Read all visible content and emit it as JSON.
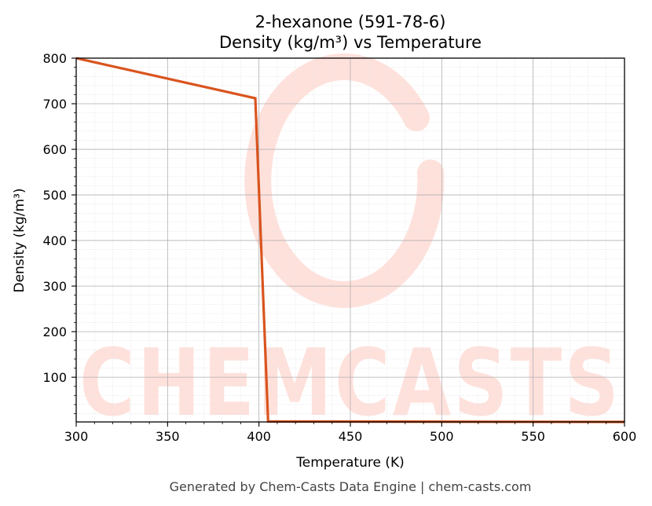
{
  "chart_data": {
    "type": "line",
    "title": "2-hexanone (591-78-6)",
    "subtitle": "Density (kg/m³) vs Temperature",
    "xlabel": "Temperature (K)",
    "ylabel": "Density (kg/m³)",
    "xlim": [
      300,
      600
    ],
    "ylim": [
      2,
      800
    ],
    "x_ticks": [
      "300",
      "350",
      "400",
      "450",
      "500",
      "550",
      "600"
    ],
    "y_ticks": [
      "100",
      "200",
      "300",
      "400",
      "500",
      "600",
      "700",
      "800"
    ],
    "grid": true,
    "series": [
      {
        "color": "#d9541e",
        "points": [
          [
            300,
            805
          ],
          [
            398,
            712
          ],
          [
            405,
            3
          ],
          [
            600,
            2
          ]
        ]
      }
    ]
  },
  "watermark": {
    "text": "CHEMCASTS",
    "color": "#ffe1dc"
  },
  "footer": "Generated by Chem-Casts Data Engine | chem-casts.com"
}
